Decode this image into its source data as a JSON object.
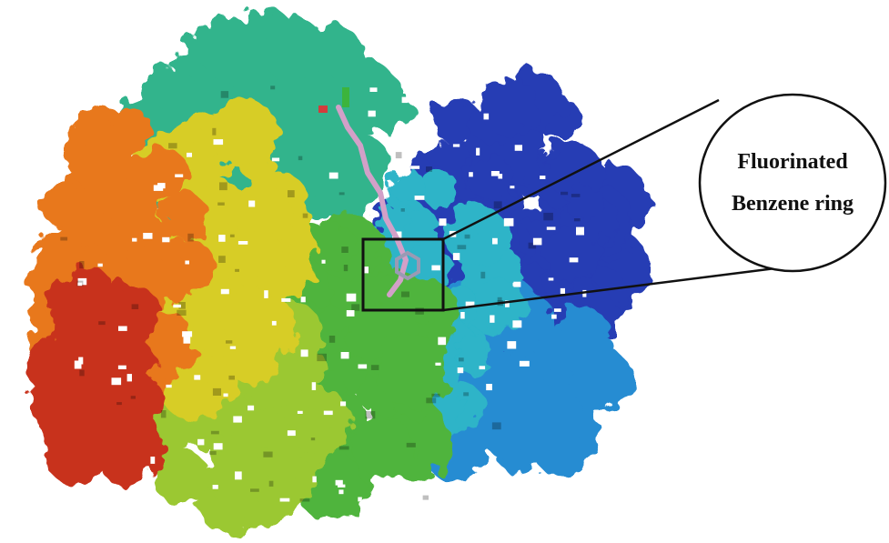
{
  "figure": {
    "callout": {
      "line1": "Fluorinated",
      "line2": "Benzene ring"
    }
  },
  "colors": {
    "background": "#ffffff",
    "red": "#c8321e",
    "orange": "#e8781e",
    "yellow": "#d7cd28",
    "yellow_green": "#9bc832",
    "green": "#50b43c",
    "teal": "#32b48c",
    "cyan": "#2db4c8",
    "light_blue": "#288cd2",
    "blue": "#283cb4",
    "ligand": "#d2a0c8",
    "outline": "#111111"
  }
}
